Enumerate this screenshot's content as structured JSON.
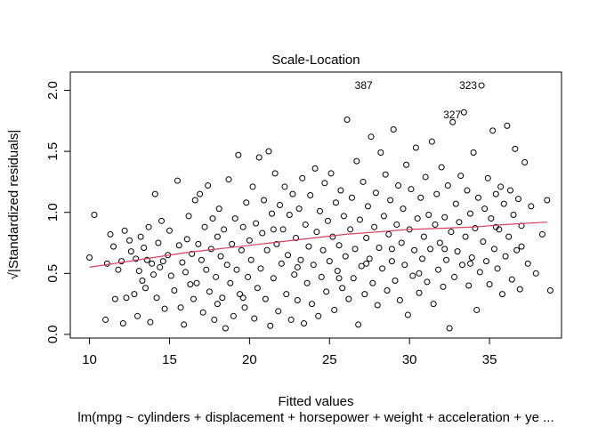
{
  "chart_data": {
    "type": "scatter",
    "title": "Scale-Location",
    "xlabel": "Fitted values",
    "ylabel": "√|Standardized residuals|",
    "caption": "lm(mpg ~ cylinders + displacement + horsepower + weight + acceleration + ye ...",
    "xlim": [
      8.8,
      39.5
    ],
    "ylim": [
      -0.03,
      2.15
    ],
    "x_ticks": [
      10,
      15,
      20,
      25,
      30,
      35
    ],
    "x_tick_labels": [
      "10",
      "15",
      "20",
      "25",
      "30",
      "35"
    ],
    "y_ticks": [
      0.0,
      0.5,
      1.0,
      1.5,
      2.0
    ],
    "y_tick_labels": [
      "0.0",
      "0.5",
      "1.0",
      "1.5",
      "2.0"
    ],
    "grid": false,
    "smoother": {
      "color": "#D6405F",
      "x": [
        10.0,
        12,
        14,
        16,
        18,
        20,
        22,
        24,
        26,
        28,
        30,
        32,
        34,
        36,
        38.6
      ],
      "y": [
        0.55,
        0.59,
        0.63,
        0.67,
        0.7,
        0.73,
        0.76,
        0.79,
        0.82,
        0.84,
        0.86,
        0.87,
        0.88,
        0.9,
        0.92
      ]
    },
    "labels": [
      {
        "text": "387",
        "x": 26.3,
        "y": 2.04
      },
      {
        "text": "323",
        "x": 34.5,
        "y": 2.04
      },
      {
        "text": "327",
        "x": 33.5,
        "y": 1.8
      }
    ],
    "points": [
      [
        10.0,
        0.63
      ],
      [
        10.3,
        0.98
      ],
      [
        11.0,
        0.12
      ],
      [
        11.1,
        0.58
      ],
      [
        11.3,
        0.82
      ],
      [
        11.5,
        0.72
      ],
      [
        11.8,
        0.53
      ],
      [
        12.0,
        0.6
      ],
      [
        12.1,
        0.09
      ],
      [
        12.2,
        0.85
      ],
      [
        12.3,
        0.3
      ],
      [
        12.5,
        0.77
      ],
      [
        12.6,
        0.68
      ],
      [
        12.8,
        0.33
      ],
      [
        12.9,
        0.62
      ],
      [
        13.0,
        0.15
      ],
      [
        13.1,
        0.52
      ],
      [
        13.2,
        0.8
      ],
      [
        13.3,
        0.44
      ],
      [
        13.4,
        0.71
      ],
      [
        13.5,
        0.38
      ],
      [
        13.6,
        0.61
      ],
      [
        13.7,
        0.88
      ],
      [
        13.8,
        0.1
      ],
      [
        13.9,
        0.58
      ],
      [
        14.0,
        0.49
      ],
      [
        14.1,
        1.15
      ],
      [
        14.2,
        0.3
      ],
      [
        14.3,
        0.75
      ],
      [
        14.4,
        0.55
      ],
      [
        14.5,
        0.93
      ],
      [
        14.7,
        0.21
      ],
      [
        14.9,
        0.65
      ],
      [
        15.0,
        0.85
      ],
      [
        15.1,
        0.48
      ],
      [
        15.3,
        0.36
      ],
      [
        15.5,
        1.26
      ],
      [
        15.6,
        0.73
      ],
      [
        15.7,
        0.22
      ],
      [
        15.8,
        0.59
      ],
      [
        15.9,
        0.08
      ],
      [
        16.0,
        0.51
      ],
      [
        16.1,
        0.78
      ],
      [
        16.2,
        0.97
      ],
      [
        16.4,
        0.66
      ],
      [
        16.5,
        0.29
      ],
      [
        16.6,
        1.1
      ],
      [
        16.7,
        0.42
      ],
      [
        16.8,
        0.74
      ],
      [
        16.9,
        1.15
      ],
      [
        17.0,
        0.61
      ],
      [
        17.1,
        0.18
      ],
      [
        17.2,
        0.88
      ],
      [
        17.3,
        0.53
      ],
      [
        17.4,
        1.22
      ],
      [
        17.5,
        0.35
      ],
      [
        17.6,
        0.7
      ],
      [
        17.7,
        0.95
      ],
      [
        17.8,
        0.12
      ],
      [
        17.9,
        0.47
      ],
      [
        18.0,
        0.8
      ],
      [
        18.0,
        0.25
      ],
      [
        18.1,
        1.03
      ],
      [
        18.2,
        0.64
      ],
      [
        18.3,
        0.3
      ],
      [
        18.4,
        0.86
      ],
      [
        18.5,
        0.05
      ],
      [
        18.6,
        0.57
      ],
      [
        18.7,
        1.27
      ],
      [
        18.8,
        0.42
      ],
      [
        18.9,
        0.74
      ],
      [
        19.0,
        0.15
      ],
      [
        19.1,
        0.95
      ],
      [
        19.2,
        0.53
      ],
      [
        19.3,
        1.47
      ],
      [
        19.4,
        0.33
      ],
      [
        19.5,
        0.69
      ],
      [
        19.6,
        0.88
      ],
      [
        19.7,
        0.22
      ],
      [
        19.8,
        1.08
      ],
      [
        19.9,
        0.47
      ],
      [
        20.0,
        0.77
      ],
      [
        20.1,
        0.61
      ],
      [
        20.2,
        1.21
      ],
      [
        20.3,
        0.13
      ],
      [
        20.4,
        0.91
      ],
      [
        20.5,
        0.38
      ],
      [
        20.6,
        1.45
      ],
      [
        20.7,
        0.54
      ],
      [
        20.8,
        0.83
      ],
      [
        20.9,
        1.1
      ],
      [
        21.0,
        0.29
      ],
      [
        21.1,
        0.69
      ],
      [
        21.2,
        1.5
      ],
      [
        21.3,
        0.07
      ],
      [
        21.4,
        0.99
      ],
      [
        21.5,
        0.46
      ],
      [
        21.6,
        1.32
      ],
      [
        21.7,
        0.74
      ],
      [
        21.8,
        0.19
      ],
      [
        21.9,
        1.06
      ],
      [
        22.0,
        0.58
      ],
      [
        22.1,
        0.86
      ],
      [
        22.2,
        1.21
      ],
      [
        22.3,
        0.33
      ],
      [
        22.4,
        0.65
      ],
      [
        22.5,
        0.98
      ],
      [
        22.6,
        0.12
      ],
      [
        22.7,
        1.15
      ],
      [
        22.8,
        0.49
      ],
      [
        22.9,
        0.79
      ],
      [
        23.0,
        0.28
      ],
      [
        23.1,
        1.03
      ],
      [
        23.2,
        0.61
      ],
      [
        23.3,
        1.28
      ],
      [
        23.4,
        0.09
      ],
      [
        23.5,
        0.9
      ],
      [
        23.6,
        0.42
      ],
      [
        23.7,
        0.72
      ],
      [
        23.8,
        1.14
      ],
      [
        23.9,
        0.25
      ],
      [
        24.0,
        0.57
      ],
      [
        24.1,
        1.36
      ],
      [
        24.2,
        0.84
      ],
      [
        24.3,
        0.15
      ],
      [
        24.4,
        1.01
      ],
      [
        24.5,
        0.47
      ],
      [
        24.6,
        0.69
      ],
      [
        24.7,
        1.24
      ],
      [
        24.8,
        0.35
      ],
      [
        24.9,
        0.93
      ],
      [
        25.0,
        0.6
      ],
      [
        25.1,
        1.32
      ],
      [
        25.2,
        0.8
      ],
      [
        25.3,
        0.2
      ],
      [
        25.4,
        1.08
      ],
      [
        25.5,
        0.52
      ],
      [
        25.6,
        0.73
      ],
      [
        25.7,
        1.18
      ],
      [
        25.8,
        0.38
      ],
      [
        25.9,
        0.97
      ],
      [
        26.0,
        0.64
      ],
      [
        26.1,
        1.76
      ],
      [
        26.2,
        0.29
      ],
      [
        26.3,
        0.86
      ],
      [
        26.4,
        1.12
      ],
      [
        26.5,
        0.46
      ],
      [
        26.6,
        0.7
      ],
      [
        26.7,
        1.42
      ],
      [
        26.8,
        0.08
      ],
      [
        26.9,
        0.94
      ],
      [
        27.0,
        0.56
      ],
      [
        27.1,
        1.25
      ],
      [
        27.2,
        0.33
      ],
      [
        27.3,
        0.79
      ],
      [
        27.4,
        1.05
      ],
      [
        27.5,
        0.62
      ],
      [
        27.6,
        1.62
      ],
      [
        27.7,
        0.42
      ],
      [
        27.8,
        0.88
      ],
      [
        27.9,
        1.16
      ],
      [
        28.0,
        0.24
      ],
      [
        28.1,
        0.71
      ],
      [
        28.2,
        1.49
      ],
      [
        28.3,
        0.54
      ],
      [
        28.4,
        0.97
      ],
      [
        28.5,
        1.31
      ],
      [
        28.6,
        0.36
      ],
      [
        28.7,
        0.82
      ],
      [
        28.8,
        1.1
      ],
      [
        28.9,
        0.6
      ],
      [
        29.0,
        1.68
      ],
      [
        29.1,
        0.44
      ],
      [
        29.2,
        0.9
      ],
      [
        29.3,
        1.22
      ],
      [
        29.4,
        0.28
      ],
      [
        29.5,
        0.75
      ],
      [
        29.6,
        1.03
      ],
      [
        29.7,
        0.57
      ],
      [
        29.8,
        1.39
      ],
      [
        29.9,
        0.16
      ],
      [
        30.0,
        0.86
      ],
      [
        30.1,
        1.19
      ],
      [
        30.2,
        0.48
      ],
      [
        30.3,
        0.69
      ],
      [
        30.4,
        1.53
      ],
      [
        30.5,
        0.95
      ],
      [
        30.6,
        0.34
      ],
      [
        30.7,
        1.12
      ],
      [
        30.8,
        0.62
      ],
      [
        30.9,
        0.8
      ],
      [
        31.0,
        1.29
      ],
      [
        31.1,
        0.43
      ],
      [
        31.2,
        0.98
      ],
      [
        31.3,
        0.7
      ],
      [
        31.4,
        1.58
      ],
      [
        31.5,
        0.25
      ],
      [
        31.6,
        0.9
      ],
      [
        31.7,
        1.15
      ],
      [
        31.8,
        0.53
      ],
      [
        31.9,
        0.75
      ],
      [
        32.0,
        1.37
      ],
      [
        32.1,
        0.39
      ],
      [
        32.2,
        0.96
      ],
      [
        32.3,
        0.61
      ],
      [
        32.4,
        1.22
      ],
      [
        32.5,
        0.05
      ],
      [
        32.6,
        0.84
      ],
      [
        32.7,
        1.74
      ],
      [
        32.8,
        0.47
      ],
      [
        32.9,
        1.07
      ],
      [
        33.0,
        0.68
      ],
      [
        33.1,
        0.92
      ],
      [
        33.2,
        1.3
      ],
      [
        33.3,
        0.57
      ],
      [
        33.4,
        1.82
      ],
      [
        33.5,
        0.8
      ],
      [
        33.6,
        1.18
      ],
      [
        33.7,
        0.4
      ],
      [
        33.8,
        0.99
      ],
      [
        33.9,
        0.63
      ],
      [
        34.0,
        1.49
      ],
      [
        34.1,
        0.87
      ],
      [
        34.2,
        0.2
      ],
      [
        34.3,
        1.12
      ],
      [
        34.4,
        0.51
      ],
      [
        34.5,
        2.04
      ],
      [
        34.6,
        0.76
      ],
      [
        34.7,
        1.03
      ],
      [
        34.8,
        0.6
      ],
      [
        34.9,
        1.28
      ],
      [
        35.0,
        0.41
      ],
      [
        35.1,
        0.95
      ],
      [
        35.2,
        1.67
      ],
      [
        35.3,
        0.7
      ],
      [
        35.4,
        1.15
      ],
      [
        35.5,
        0.54
      ],
      [
        35.6,
        0.86
      ],
      [
        35.7,
        1.21
      ],
      [
        35.8,
        0.33
      ],
      [
        35.9,
        1.07
      ],
      [
        36.0,
        0.64
      ],
      [
        36.1,
        1.71
      ],
      [
        36.2,
        0.8
      ],
      [
        36.3,
        1.18
      ],
      [
        36.4,
        0.45
      ],
      [
        36.5,
        0.98
      ],
      [
        36.6,
        1.52
      ],
      [
        36.7,
        0.69
      ],
      [
        36.8,
        1.11
      ],
      [
        36.9,
        0.37
      ],
      [
        37.0,
        0.89
      ],
      [
        37.2,
        1.41
      ],
      [
        37.4,
        0.58
      ],
      [
        37.6,
        1.05
      ],
      [
        37.9,
        0.5
      ],
      [
        38.3,
        0.82
      ],
      [
        38.6,
        1.1
      ],
      [
        38.8,
        0.36
      ],
      [
        11.6,
        0.29
      ],
      [
        14.6,
        0.6
      ],
      [
        16.3,
        0.41
      ],
      [
        19.6,
        0.3
      ],
      [
        21.5,
        0.86
      ],
      [
        23.0,
        0.55
      ],
      [
        25.6,
        0.46
      ],
      [
        27.3,
        0.58
      ],
      [
        28.9,
        0.7
      ],
      [
        30.6,
        0.5
      ],
      [
        32.2,
        0.7
      ],
      [
        33.8,
        0.58
      ],
      [
        35.4,
        0.88
      ],
      [
        37.0,
        0.72
      ]
    ]
  }
}
